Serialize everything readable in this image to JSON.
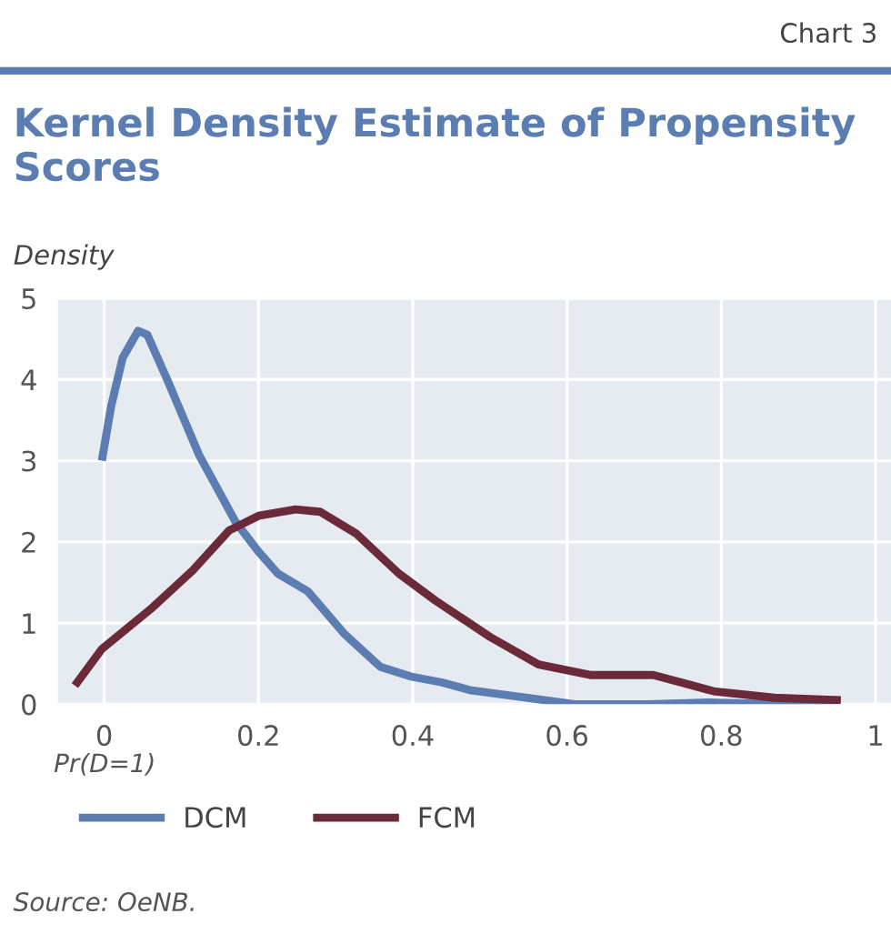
{
  "chart_data": {
    "type": "line",
    "title": "Kernel Density Estimate of Propensity Scores",
    "xlabel": "Pr(D=1)",
    "ylabel": "Density",
    "annotations": [
      "Chart 3",
      "Source: OeNB."
    ],
    "xlim": [
      -0.06,
      1.02
    ],
    "ylim": [
      0,
      5
    ],
    "xticks": [
      0,
      0.2,
      0.4,
      0.6,
      0.8,
      1
    ],
    "yticks": [
      0,
      1,
      2,
      3,
      4,
      5
    ],
    "grid": true,
    "legend": "bottom",
    "line_style": "solid",
    "marker": "none",
    "series": [
      {
        "name": "DCM",
        "color": "#5b7db1",
        "x": [
          -0.003,
          0.009,
          0.024,
          0.044,
          0.056,
          0.083,
          0.123,
          0.17,
          0.2,
          0.225,
          0.264,
          0.311,
          0.358,
          0.398,
          0.437,
          0.476,
          0.547,
          0.61,
          0.705,
          0.783,
          0.877,
          0.952
        ],
        "values": [
          3.0,
          3.67,
          4.27,
          4.6,
          4.55,
          3.97,
          3.07,
          2.25,
          1.88,
          1.61,
          1.39,
          0.87,
          0.46,
          0.34,
          0.27,
          0.17,
          0.08,
          0.0,
          0.0,
          0.02,
          0.0,
          0.05
        ]
      },
      {
        "name": "FCM",
        "color": "#6b2a3a",
        "x": [
          -0.038,
          -0.003,
          0.06,
          0.115,
          0.162,
          0.2,
          0.248,
          0.28,
          0.327,
          0.382,
          0.429,
          0.5,
          0.563,
          0.63,
          0.712,
          0.79,
          0.869,
          0.955
        ],
        "values": [
          0.23,
          0.68,
          1.17,
          1.65,
          2.14,
          2.32,
          2.4,
          2.37,
          2.1,
          1.61,
          1.28,
          0.83,
          0.49,
          0.36,
          0.36,
          0.16,
          0.08,
          0.05
        ]
      }
    ]
  }
}
